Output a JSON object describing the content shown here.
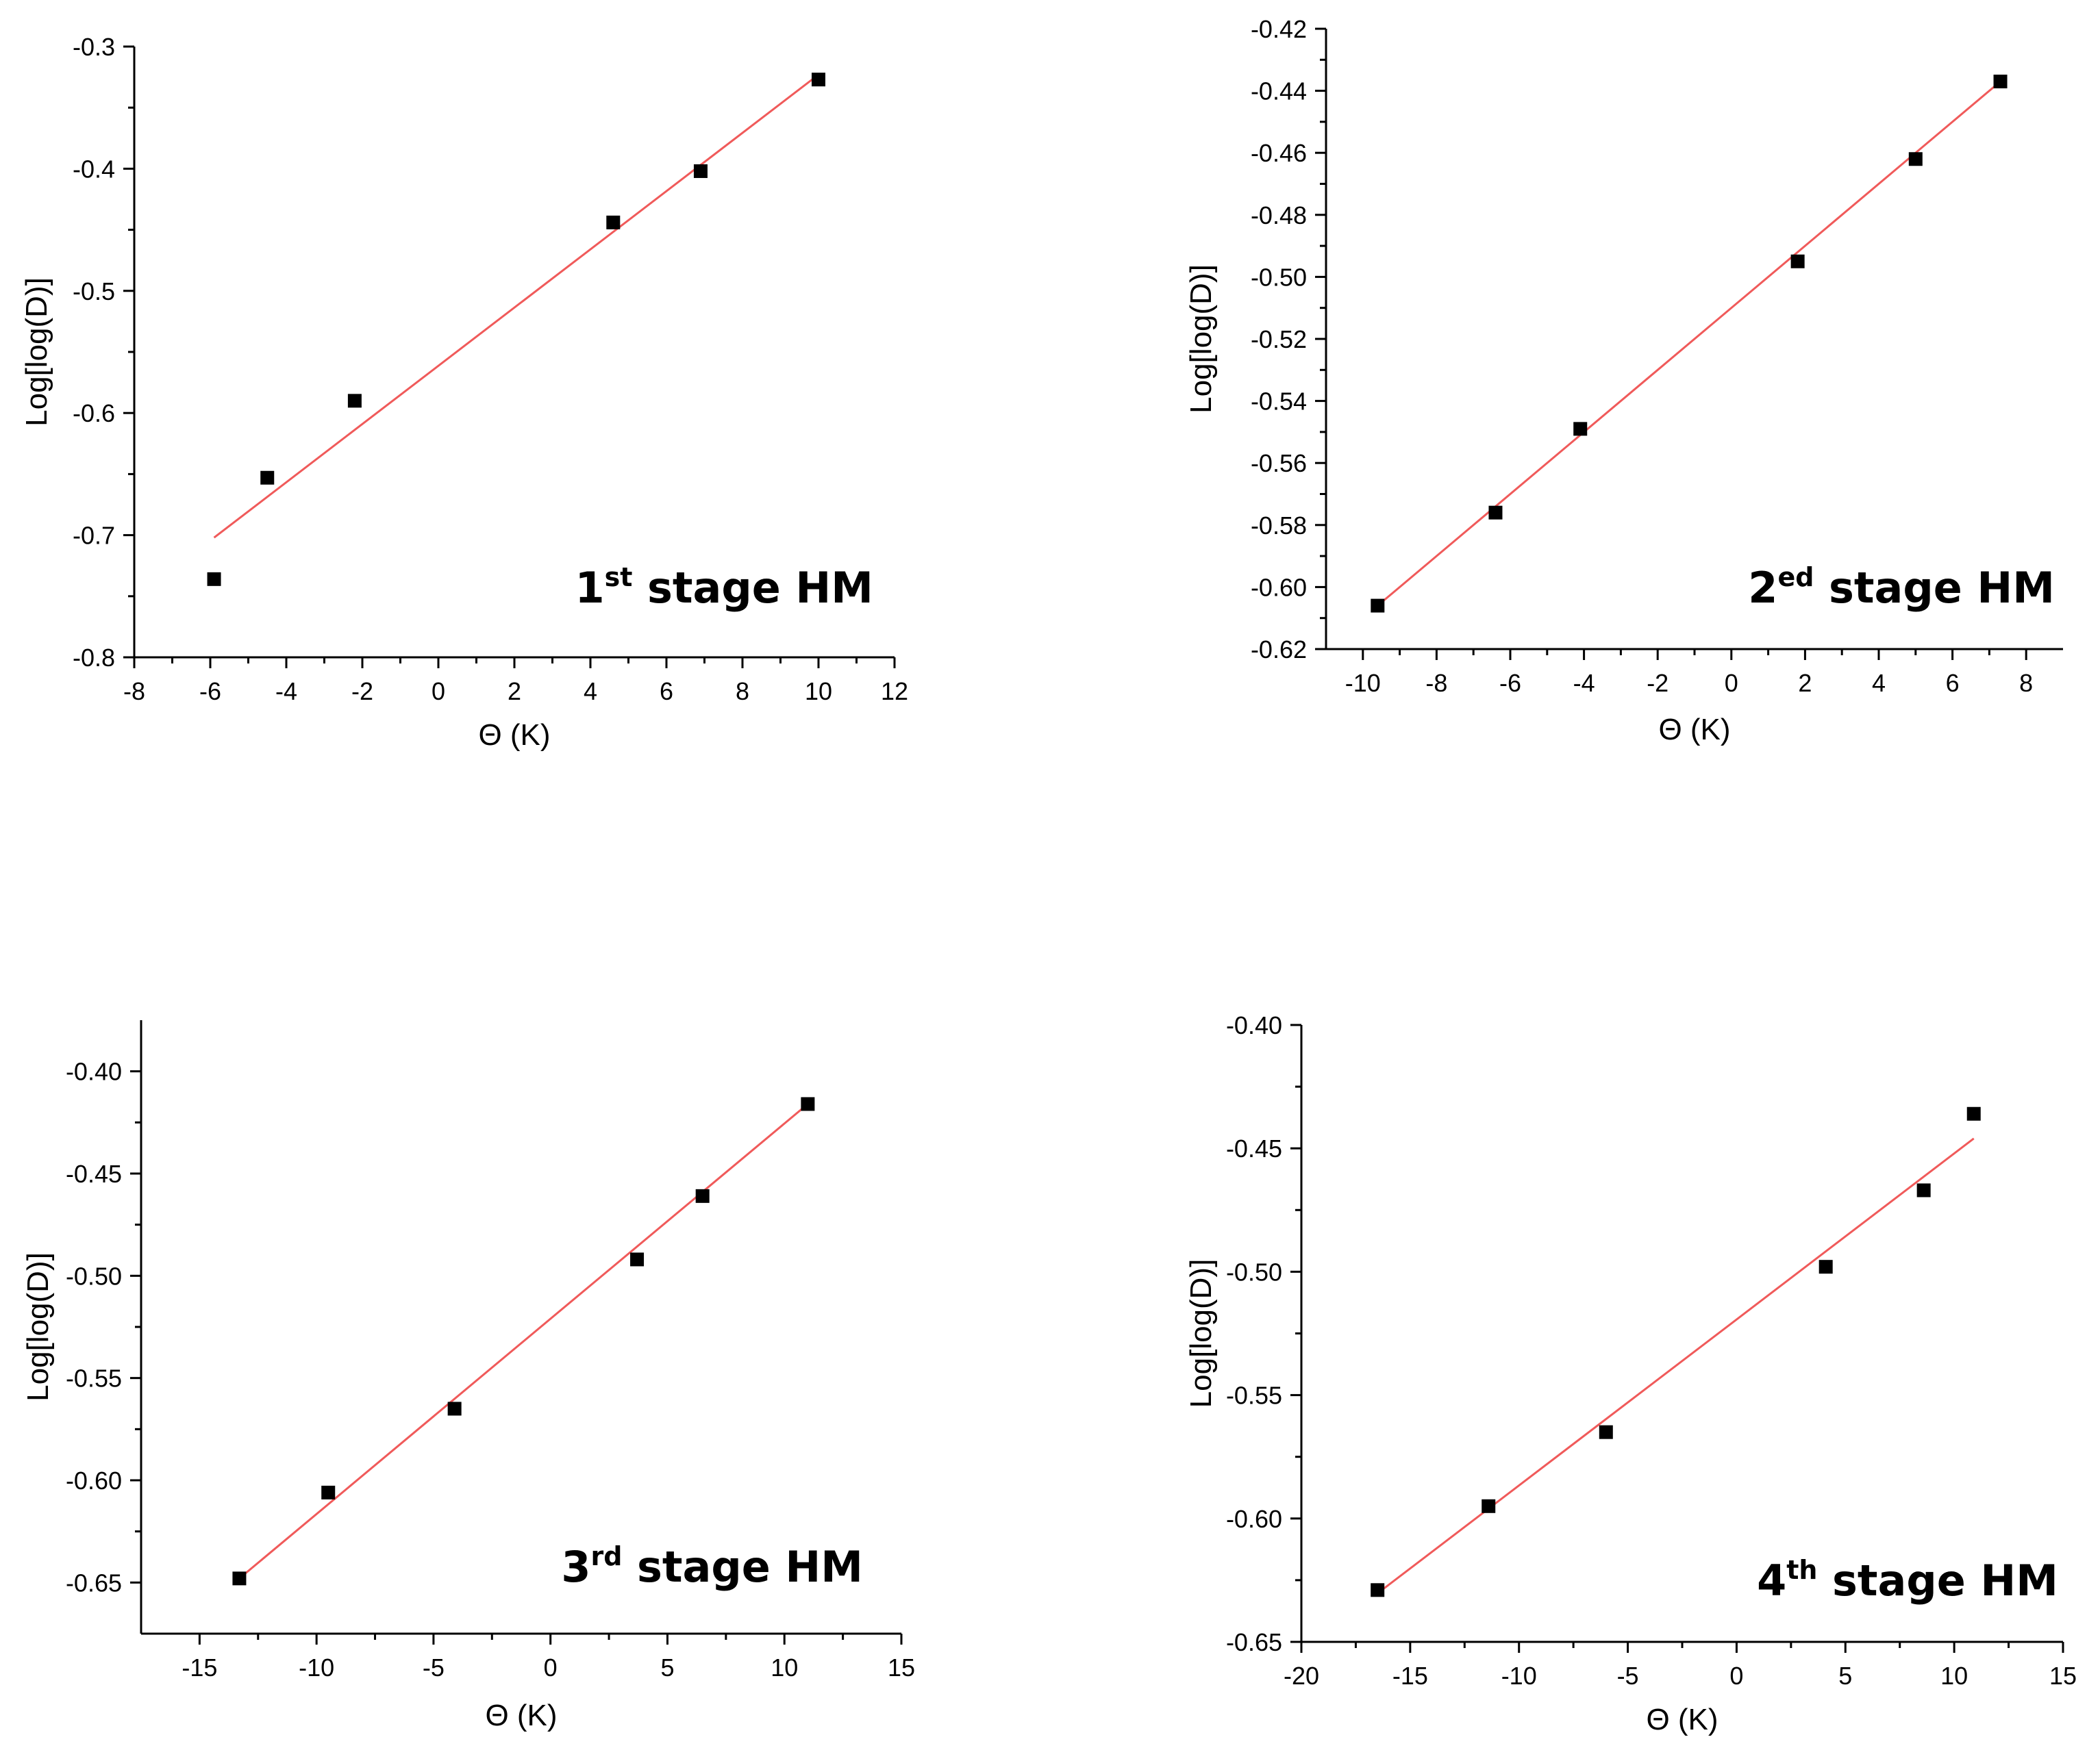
{
  "chart_data": [
    {
      "type": "scatter",
      "panel": "top-left",
      "xlabel": "Θ (K)",
      "ylabel": "Log[log(D)]",
      "xlim": [
        -8,
        12
      ],
      "ylim": [
        -0.8,
        -0.3
      ],
      "xticks": [
        -8,
        -6,
        -4,
        -2,
        0,
        2,
        4,
        6,
        8,
        10,
        12
      ],
      "xtick_labels": [
        "-8",
        "-6",
        "-4",
        "-2",
        "0",
        "2",
        "4",
        "6",
        "8",
        "10",
        "12"
      ],
      "yticks": [
        -0.8,
        -0.7,
        -0.6,
        -0.5,
        -0.4,
        -0.3
      ],
      "ytick_labels": [
        "-0.8",
        "-0.7",
        "-0.6",
        "-0.5",
        "-0.4",
        "-0.3"
      ],
      "x_minor": true,
      "y_minor": true,
      "annotation": {
        "main": "1",
        "sup": "st",
        "rest": " stage HM"
      },
      "points": {
        "x": [
          -5.9,
          -4.5,
          -2.2,
          4.6,
          6.9,
          10.0
        ],
        "y": [
          -0.736,
          -0.653,
          -0.59,
          -0.444,
          -0.402,
          -0.327
        ]
      },
      "fit": {
        "x": [
          -5.9,
          10.0
        ],
        "y": [
          -0.702,
          -0.323
        ]
      }
    },
    {
      "type": "scatter",
      "panel": "top-right",
      "xlabel": "Θ (K)",
      "ylabel": "Log[log(D)]",
      "xlim": [
        -11,
        9
      ],
      "ylim": [
        -0.62,
        -0.42
      ],
      "xticks": [
        -10,
        -8,
        -6,
        -4,
        -2,
        0,
        2,
        4,
        6,
        8
      ],
      "xtick_labels": [
        "-10",
        "-8",
        "-6",
        "-4",
        "-2",
        "0",
        "2",
        "4",
        "6",
        "8"
      ],
      "yticks": [
        -0.62,
        -0.6,
        -0.58,
        -0.56,
        -0.54,
        -0.52,
        -0.5,
        -0.48,
        -0.46,
        -0.44,
        -0.42
      ],
      "ytick_labels": [
        "-0.62",
        "-0.60",
        "-0.58",
        "-0.56",
        "-0.54",
        "-0.52",
        "-0.50",
        "-0.48",
        "-0.46",
        "-0.44",
        "-0.42"
      ],
      "x_minor": true,
      "y_minor": true,
      "annotation": {
        "main": "2",
        "sup": "ed",
        "rest": " stage HM"
      },
      "points": {
        "x": [
          -9.6,
          -6.4,
          -4.1,
          1.8,
          5.0,
          7.3
        ],
        "y": [
          -0.606,
          -0.576,
          -0.549,
          -0.495,
          -0.462,
          -0.437
        ]
      },
      "fit": {
        "x": [
          -9.6,
          7.3
        ],
        "y": [
          -0.606,
          -0.437
        ]
      }
    },
    {
      "type": "scatter",
      "panel": "bottom-left",
      "xlabel": "Θ (K)",
      "ylabel": "Log[log(D)]",
      "xlim": [
        -17.5,
        15
      ],
      "ylim": [
        -0.675,
        -0.375
      ],
      "xticks": [
        -15,
        -10,
        -5,
        0,
        5,
        10,
        15
      ],
      "xtick_labels": [
        "-15",
        "-10",
        "-5",
        "0",
        "5",
        "10",
        "15"
      ],
      "yticks": [
        -0.65,
        -0.6,
        -0.55,
        -0.5,
        -0.45,
        -0.4
      ],
      "ytick_labels": [
        "-0.65",
        "-0.60",
        "-0.55",
        "-0.50",
        "-0.45",
        "-0.40"
      ],
      "x_minor": true,
      "y_minor": true,
      "annotation": {
        "main": "3",
        "sup": "rd",
        "rest": " stage HM"
      },
      "points": {
        "x": [
          -13.3,
          -9.5,
          -4.1,
          3.7,
          6.5,
          11.0
        ],
        "y": [
          -0.648,
          -0.606,
          -0.565,
          -0.492,
          -0.461,
          -0.416
        ]
      },
      "fit": {
        "x": [
          -13.3,
          11.0
        ],
        "y": [
          -0.648,
          -0.416
        ]
      }
    },
    {
      "type": "scatter",
      "panel": "bottom-right",
      "xlabel": "Θ (K)",
      "ylabel": "Log[log(D)]",
      "xlim": [
        -20,
        15
      ],
      "ylim": [
        -0.65,
        -0.4
      ],
      "xticks": [
        -20,
        -15,
        -10,
        -5,
        0,
        5,
        10,
        15
      ],
      "xtick_labels": [
        "-20",
        "-15",
        "-10",
        "-5",
        "0",
        "5",
        "10",
        "15"
      ],
      "yticks": [
        -0.65,
        -0.6,
        -0.55,
        -0.5,
        -0.45,
        -0.4
      ],
      "ytick_labels": [
        "-0.65",
        "-0.60",
        "-0.55",
        "-0.50",
        "-0.45",
        "-0.40"
      ],
      "x_minor": true,
      "y_minor": true,
      "annotation": {
        "main": "4",
        "sup": "th",
        "rest": " stage HM"
      },
      "points": {
        "x": [
          -16.5,
          -11.4,
          -6.0,
          4.1,
          8.6,
          10.9
        ],
        "y": [
          -0.629,
          -0.595,
          -0.565,
          -0.498,
          -0.467,
          -0.436
        ]
      },
      "fit": {
        "x": [
          -16.3,
          10.9
        ],
        "y": [
          -0.629,
          -0.446
        ]
      }
    }
  ]
}
